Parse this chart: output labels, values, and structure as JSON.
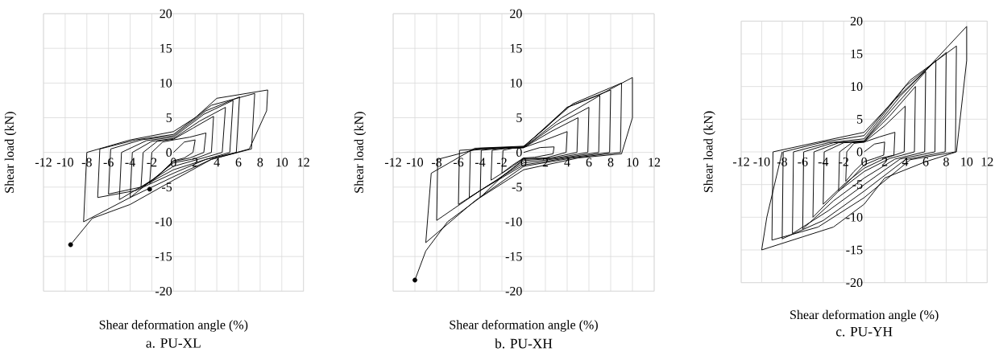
{
  "chart_data": [
    {
      "type": "line",
      "title": "a. PU-XL",
      "xlabel": "Shear deformation angle (%)",
      "ylabel": "Shear load (kN)",
      "xlim": [
        -12,
        12
      ],
      "xticks": [
        -12,
        -10,
        -8,
        -6,
        -4,
        -2,
        0,
        2,
        4,
        6,
        8,
        10,
        12
      ],
      "ylim": [
        -20,
        20
      ],
      "yticks": [
        -20,
        -15,
        -10,
        -5,
        0,
        5,
        10,
        15,
        20
      ],
      "grid": true,
      "marker": "none",
      "line_style": "solid",
      "series": [
        {
          "color": "#000000",
          "x": [
            0,
            1,
            2,
            1.8,
            1,
            0,
            -1.2,
            -2.2,
            -2,
            -1,
            0,
            1.5,
            3,
            2.8,
            1.5,
            0,
            -1.5,
            -3,
            -2.8,
            -1.5,
            0,
            1.8,
            3.7,
            3.5,
            2,
            0,
            -2,
            -4,
            -3.8,
            -2,
            0,
            2.4,
            4.8,
            4.5,
            2.5,
            0,
            -2.5,
            -5,
            -4.8,
            -2.5,
            0,
            2.8,
            5.5,
            5.2,
            3,
            0,
            -3,
            -6,
            -5.8,
            -3,
            0,
            3,
            6.1,
            5.8,
            3,
            0,
            -3.5,
            -7,
            -6.8,
            -3.5,
            0,
            3.5,
            7.5,
            7.2,
            3.5,
            0,
            -4,
            -8.3,
            -8,
            -4,
            0,
            2,
            4,
            8.7,
            8.6,
            7,
            3.5,
            0,
            -4,
            -7.5,
            -9.5
          ],
          "values": [
            0,
            1.5,
            1.8,
            0,
            -0.8,
            -1.2,
            -3,
            -4.5,
            0,
            1.5,
            1.8,
            2.2,
            2.8,
            0,
            -0.8,
            -1.3,
            -3.5,
            -5,
            0,
            1.6,
            1.9,
            3.5,
            5.2,
            0,
            -0.9,
            -1.5,
            -4,
            -6.5,
            0,
            1.6,
            2,
            4.5,
            6.5,
            0,
            -0.9,
            -2,
            -4.5,
            -6.8,
            0,
            1.7,
            2.2,
            5.5,
            7.5,
            0,
            -1,
            -2.5,
            -5,
            -6,
            0.5,
            1.8,
            2.4,
            6,
            8,
            0,
            -1,
            -3,
            -5.5,
            -6.5,
            0.5,
            1.8,
            2.6,
            6.8,
            8.5,
            0.5,
            -1,
            -3.5,
            -6.5,
            -10,
            0,
            1.8,
            3,
            5,
            7.8,
            9,
            6,
            0.5,
            -1,
            -4,
            -7.5,
            -9.5,
            -13.3
          ]
        },
        {
          "type": "scatter",
          "color": "#000000",
          "x": [
            -9.5,
            -2.2
          ],
          "values": [
            -13.3,
            -5.3
          ]
        }
      ]
    },
    {
      "type": "line",
      "title": "b. PU-XH",
      "xlabel": "Shear deformation angle (%)",
      "ylabel": "Shear load (kN)",
      "xlim": [
        -12,
        12
      ],
      "xticks": [
        -12,
        -10,
        -8,
        -6,
        -4,
        -2,
        0,
        2,
        4,
        6,
        8,
        10,
        12
      ],
      "ylim": [
        -20,
        20
      ],
      "yticks": [
        -20,
        -15,
        -10,
        -5,
        0,
        5,
        10,
        15,
        20
      ],
      "grid": true,
      "marker": "none",
      "line_style": "solid",
      "series": [
        {
          "color": "#000000",
          "x": [
            0,
            1.5,
            2.8,
            2.7,
            1,
            0,
            -1,
            -2,
            -1.9,
            -1,
            0,
            2,
            4,
            3.9,
            2,
            0,
            -1.5,
            -3,
            -2.9,
            -1.5,
            0,
            2.5,
            5,
            4.9,
            2.5,
            0,
            -2,
            -4,
            -3.9,
            -2,
            0,
            3,
            6,
            5.9,
            3,
            0,
            -2.5,
            -5,
            -4.9,
            -2.5,
            0,
            3.5,
            7,
            6.9,
            3.5,
            0,
            -3,
            -6,
            -5.9,
            -3,
            0,
            4,
            8,
            7.9,
            4,
            0,
            -4,
            -8,
            -7.9,
            -4,
            0,
            4.5,
            9,
            8.9,
            4.5,
            0,
            -4.5,
            -9,
            -8.5,
            -4.5,
            0,
            2,
            4,
            7,
            10,
            10,
            9,
            5,
            0,
            -4,
            -7,
            -9,
            -10
          ],
          "values": [
            0,
            0.7,
            0.8,
            -0.2,
            -0.7,
            -0.8,
            -1.8,
            -3,
            0.3,
            0.6,
            0.7,
            1.8,
            3,
            0,
            -0.8,
            -0.9,
            -2.5,
            -4,
            0.3,
            0.6,
            0.7,
            3,
            5,
            0,
            -0.8,
            -1,
            -3.5,
            -6.5,
            0.3,
            0.6,
            0.7,
            4,
            6.5,
            0,
            -0.8,
            -1.2,
            -4,
            -6.5,
            0.3,
            0.6,
            0.7,
            5,
            8.2,
            0,
            -0.8,
            -1.5,
            -4.5,
            -7.5,
            0.3,
            0.6,
            0.8,
            6.5,
            9,
            0,
            -0.8,
            -1.8,
            -5.5,
            -9.8,
            -1,
            0.6,
            0.8,
            7,
            10,
            0,
            -0.8,
            -2,
            -7,
            -13,
            -3,
            0.6,
            0.9,
            3.5,
            6.5,
            8.3,
            10.8,
            5,
            -0.2,
            -0.8,
            -2.5,
            -6.5,
            -10,
            -14.2,
            -18.4
          ]
        },
        {
          "type": "scatter",
          "color": "#000000",
          "x": [
            -10
          ],
          "values": [
            -18.4
          ]
        }
      ]
    },
    {
      "type": "line",
      "title": "c. PU-YH",
      "xlabel": "Shear deformation angle (%)",
      "ylabel": "Shear load (kN)",
      "xlim": [
        -12,
        12
      ],
      "xticks": [
        -12,
        -10,
        -8,
        -6,
        -4,
        -2,
        0,
        2,
        4,
        6,
        8,
        10,
        12
      ],
      "ylim": [
        -20,
        20
      ],
      "yticks": [
        -20,
        -15,
        -10,
        -5,
        0,
        5,
        10,
        15,
        20
      ],
      "grid": true,
      "marker": "none",
      "line_style": "solid",
      "series": [
        {
          "color": "#000000",
          "x": [
            0,
            1,
            2,
            1.9,
            1,
            0,
            -1,
            -1.8,
            -1.7,
            -1,
            0,
            1.5,
            3,
            2.9,
            1.5,
            0,
            -1.2,
            -2.5,
            -2.4,
            -1.2,
            0,
            2,
            4,
            3.9,
            2,
            0,
            -2,
            -4,
            -3.9,
            -2,
            0,
            2.5,
            5,
            4.9,
            2.5,
            0,
            -2.5,
            -5,
            -4.9,
            -2.5,
            0,
            3,
            6,
            5.9,
            3,
            0,
            -3,
            -6,
            -5.9,
            -3,
            0,
            3.5,
            7,
            6.9,
            3.5,
            0,
            -3.5,
            -7,
            -6.9,
            -3.5,
            0,
            4,
            8,
            7.9,
            4,
            0,
            -4,
            -8,
            -7.9,
            -4,
            0,
            4.5,
            9,
            8.9,
            4.5,
            0,
            -4.5,
            -9,
            -8.9,
            -4.5,
            0,
            3,
            6,
            10,
            10,
            9,
            6,
            2,
            0,
            -3,
            -6,
            -10,
            -9.5,
            -8
          ],
          "values": [
            0,
            1.2,
            1.5,
            -0.5,
            -1,
            -1.5,
            -3,
            -4.5,
            0,
            1.3,
            1.5,
            2.3,
            3,
            -0.5,
            -1,
            -2,
            -4,
            -6,
            0,
            1.4,
            1.5,
            4,
            7,
            0,
            -1,
            -2.5,
            -5,
            -8,
            0,
            1.4,
            1.6,
            5.5,
            10,
            0,
            -1,
            -3,
            -6,
            -10,
            0,
            1.4,
            1.6,
            7,
            12.3,
            0,
            -1.1,
            -4,
            -7.5,
            -11.8,
            0,
            1.4,
            1.7,
            8.5,
            14,
            0,
            -1.1,
            -5,
            -9,
            -12.5,
            0,
            1.4,
            2,
            10,
            15.2,
            0,
            -1.2,
            -6,
            -10.5,
            -13.3,
            0,
            1.5,
            2.5,
            11,
            16.2,
            0,
            -1.2,
            -7,
            -11.5,
            -13.5,
            0,
            1.5,
            3,
            8,
            12.5,
            19.2,
            14,
            0,
            -1.5,
            -4,
            -8,
            -11.5,
            -13,
            -15,
            -10,
            0
          ]
        }
      ]
    }
  ]
}
